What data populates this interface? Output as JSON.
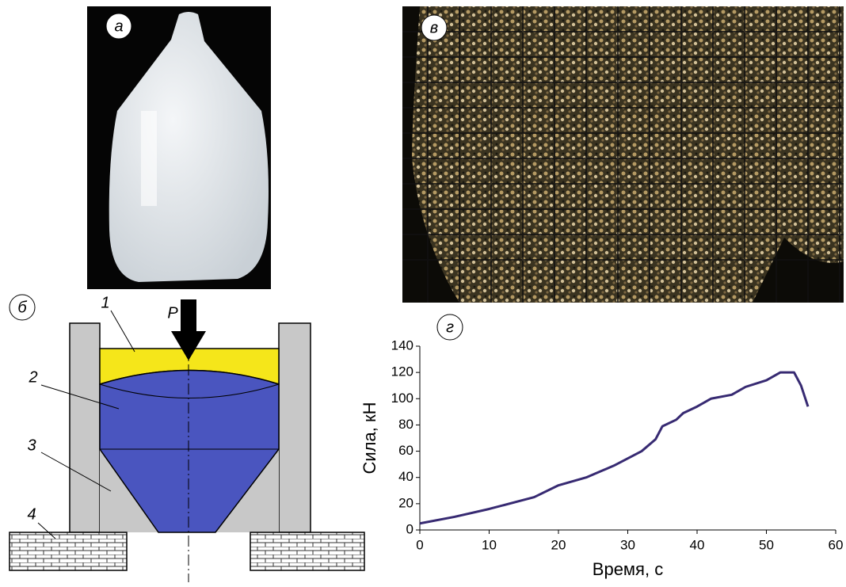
{
  "panels": {
    "a": "а",
    "b": "б",
    "v": "в",
    "g": "г"
  },
  "diagram": {
    "force": "P",
    "parts": [
      "1",
      "2",
      "3",
      "4"
    ]
  },
  "chart_data": {
    "type": "line",
    "x_label": "Время, с",
    "y_label": "Сила, кН",
    "x": [
      0,
      5,
      10,
      16.5,
      20,
      24,
      28,
      32,
      34,
      35,
      37,
      38,
      40,
      42,
      45,
      47,
      50,
      52,
      54,
      55,
      56
    ],
    "series": [
      {
        "color": "#372a72",
        "values": [
          5,
          10,
          16,
          25,
          34,
          40,
          49,
          60,
          69,
          79,
          84,
          89,
          94,
          100,
          103,
          109,
          114,
          120,
          120,
          110,
          94
        ]
      }
    ],
    "xlim": [
      0,
      60
    ],
    "xticks": [
      0,
      10,
      20,
      30,
      40,
      50,
      60
    ],
    "ylim": [
      0,
      140
    ],
    "yticks": [
      0,
      20,
      40,
      60,
      80,
      100,
      120,
      140
    ]
  }
}
